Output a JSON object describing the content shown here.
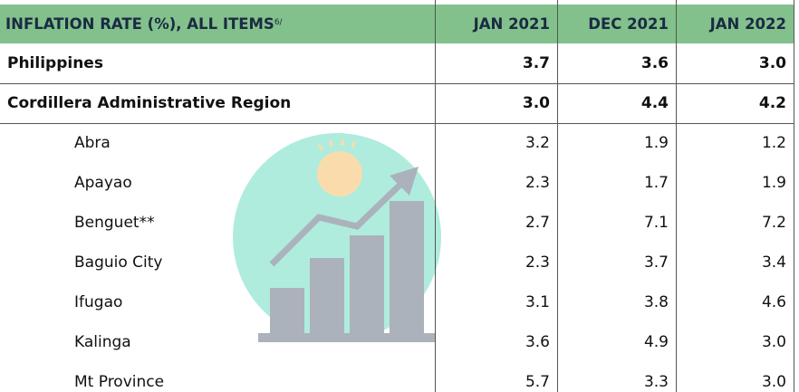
{
  "header": {
    "title": "INFLATION RATE (%), ALL ITEMS",
    "superscript": "6/",
    "columns": [
      "JAN 2021",
      "DEC 2021",
      "JAN 2022"
    ]
  },
  "summary_rows": [
    {
      "name": "Philippines",
      "values": [
        "3.7",
        "3.6",
        "3.0"
      ]
    },
    {
      "name": "Cordillera Administrative Region",
      "values": [
        "3.0",
        "4.4",
        "4.2"
      ]
    }
  ],
  "provinces": [
    {
      "name": "Abra",
      "values": [
        "3.2",
        "1.9",
        "1.2"
      ]
    },
    {
      "name": "Apayao",
      "values": [
        "2.3",
        "1.7",
        "1.9"
      ]
    },
    {
      "name": "Benguet**",
      "values": [
        "2.7",
        "7.1",
        "7.2"
      ]
    },
    {
      "name": "Baguio City",
      "values": [
        "2.3",
        "3.7",
        "3.4"
      ]
    },
    {
      "name": "Ifugao",
      "values": [
        "3.1",
        "3.8",
        "4.6"
      ]
    },
    {
      "name": "Kalinga",
      "values": [
        "3.6",
        "4.9",
        "3.0"
      ]
    },
    {
      "name": "Mt Province",
      "values": [
        "5.7",
        "3.3",
        "3.0"
      ]
    }
  ]
}
